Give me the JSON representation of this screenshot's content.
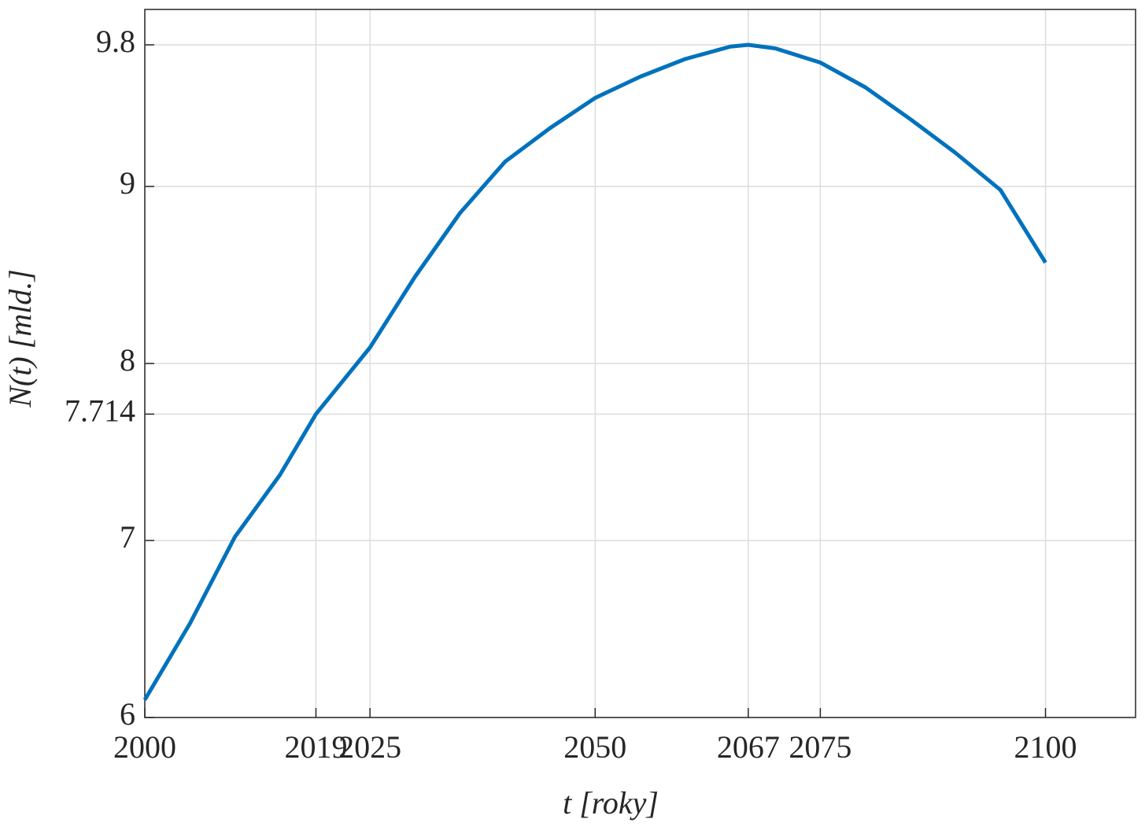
{
  "chart_data": {
    "type": "line",
    "xlabel": "t [roky]",
    "ylabel": "N(t) [mld.]",
    "x": [
      2000,
      2005,
      2010,
      2015,
      2019,
      2025,
      2030,
      2035,
      2040,
      2045,
      2050,
      2055,
      2060,
      2065,
      2067,
      2070,
      2075,
      2080,
      2085,
      2090,
      2095,
      2100
    ],
    "series": [
      {
        "color": "#0072bd",
        "values": [
          6.1,
          6.53,
          7.02,
          7.37,
          7.714,
          8.09,
          8.49,
          8.85,
          9.14,
          9.33,
          9.5,
          9.62,
          9.72,
          9.79,
          9.8,
          9.78,
          9.7,
          9.56,
          9.38,
          9.19,
          8.98,
          8.57
        ]
      }
    ],
    "xlim": [
      2000,
      2110
    ],
    "ylim": [
      6,
      10
    ],
    "xticks": [
      2000,
      2019,
      2025,
      2050,
      2067,
      2075,
      2100
    ],
    "yticks": [
      6,
      7,
      7.714,
      8,
      9,
      9.8
    ],
    "grid": true
  }
}
